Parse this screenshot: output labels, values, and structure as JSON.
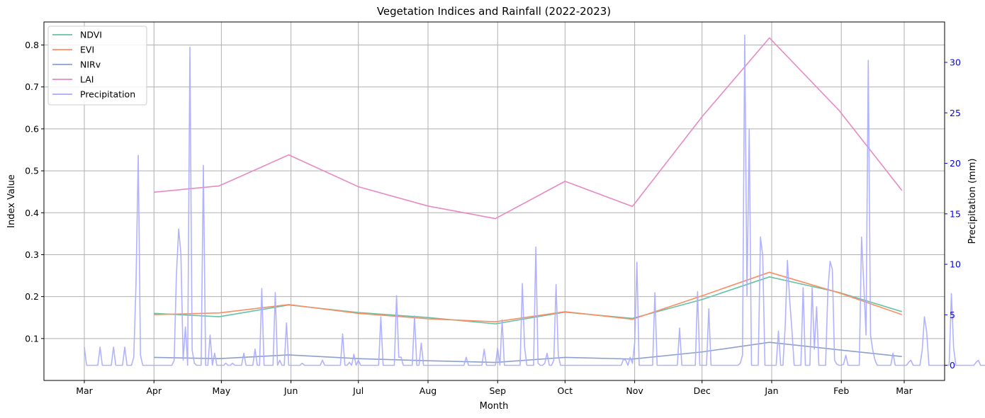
{
  "chart_data": {
    "type": "line",
    "title": "Vegetation Indices and Rainfall (2022-2023)",
    "xlabel": "Month",
    "ylabel": "Index Value",
    "y2label": "Precipitation (mm)",
    "y2_color": "#0000ff",
    "grid": true,
    "legend_position": "top-left",
    "x_ticks": [
      "Mar",
      "Apr",
      "May",
      "Jun",
      "Jul",
      "Aug",
      "Sep",
      "Oct",
      "Nov",
      "Dec",
      "Jan",
      "Feb",
      "Mar"
    ],
    "ylim": [
      0.0,
      0.855
    ],
    "y_ticks": [
      "0.1",
      "0.2",
      "0.3",
      "0.4",
      "0.5",
      "0.6",
      "0.7",
      "0.8"
    ],
    "y2lim": [
      -1.5,
      34
    ],
    "y2_ticks": [
      "0",
      "5",
      "10",
      "15",
      "20",
      "25",
      "30"
    ],
    "x_dates": [
      "2022-04-01",
      "2022-04-30",
      "2022-05-31",
      "2022-07-01",
      "2022-08-01",
      "2022-08-31",
      "2022-10-01",
      "2022-10-31",
      "2022-12-01",
      "2022-12-31",
      "2023-01-31",
      "2023-02-28"
    ],
    "series": [
      {
        "name": "NDVI",
        "color": "#66c2a5",
        "axis": "left",
        "values": [
          0.16,
          0.152,
          0.18,
          0.162,
          0.15,
          0.135,
          0.163,
          0.148,
          0.193,
          0.247,
          0.21,
          0.164
        ]
      },
      {
        "name": "EVI",
        "color": "#fc8d62",
        "axis": "left",
        "values": [
          0.157,
          0.161,
          0.181,
          0.16,
          0.147,
          0.14,
          0.164,
          0.146,
          0.202,
          0.258,
          0.209,
          0.157
        ]
      },
      {
        "name": "NIRv",
        "color": "#8da0cb",
        "axis": "left",
        "values": [
          0.055,
          0.052,
          0.061,
          0.052,
          0.047,
          0.043,
          0.055,
          0.051,
          0.068,
          0.091,
          0.073,
          0.057
        ]
      },
      {
        "name": "LAI",
        "color": "#e78ac3",
        "axis": "left",
        "values": [
          0.449,
          0.464,
          0.538,
          0.462,
          0.416,
          0.386,
          0.475,
          0.415,
          0.629,
          0.817,
          0.644,
          0.453
        ]
      },
      {
        "name": "Precipitation",
        "color": "#aaaaff",
        "axis": "right",
        "x_start": "2022-03-01",
        "values": [
          1.8,
          0,
          0,
          0,
          0,
          0,
          0,
          1.8,
          0,
          0,
          0,
          0,
          0,
          1.8,
          0,
          0,
          0,
          0,
          1.8,
          0,
          0,
          0,
          0.8,
          8,
          20.8,
          1,
          0,
          0,
          0,
          0,
          0,
          0,
          0,
          0,
          0,
          0,
          0,
          0,
          0,
          0,
          0.5,
          9,
          13.5,
          11,
          0.5,
          3.8,
          0,
          31.5,
          1.5,
          0.2,
          0,
          0,
          0,
          19.8,
          0,
          0,
          3,
          0,
          1.2,
          0,
          0,
          0,
          0,
          0.2,
          0,
          0,
          0.2,
          0,
          0,
          0,
          0,
          1.2,
          0,
          0,
          0,
          0,
          1.6,
          0,
          0,
          7.6,
          0,
          0,
          0,
          0,
          0,
          7.2,
          0,
          0.5,
          0,
          0,
          4.2,
          0,
          0,
          0,
          0,
          0,
          0,
          0.2,
          0,
          0,
          0,
          0,
          0,
          0,
          0,
          0,
          0.5,
          0,
          0,
          0,
          0,
          0,
          0,
          0,
          0,
          3.1,
          0,
          0,
          0.3,
          0,
          1.1,
          0,
          0.5,
          0,
          0,
          0,
          0,
          0,
          0,
          0,
          0,
          0,
          4.8,
          0,
          0,
          0,
          0,
          0,
          0,
          6.9,
          0.8,
          0.8,
          0,
          0,
          0,
          0,
          0,
          4.9,
          0,
          0,
          2.2,
          0,
          0,
          0,
          0,
          0,
          0,
          0,
          0,
          0,
          0,
          0,
          0,
          0,
          0,
          0,
          0,
          0,
          0,
          0,
          0.8,
          0,
          0,
          0,
          0,
          0,
          0,
          0,
          1.6,
          0,
          0,
          0,
          0,
          0,
          1.7,
          0,
          4.5,
          0,
          0,
          0,
          0,
          0,
          0,
          0,
          0,
          8.1,
          1.8,
          0,
          0,
          0,
          0,
          11.7,
          0.2,
          0,
          0,
          0.2,
          1.2,
          0,
          0,
          0.5,
          8,
          1,
          0,
          0,
          0,
          0,
          0,
          0,
          0,
          0,
          0,
          0,
          0,
          0,
          0,
          0,
          0,
          0,
          0,
          0,
          0,
          0,
          0,
          0,
          0,
          0,
          0,
          0,
          0,
          0,
          0.6,
          0.5,
          0,
          0.8,
          0.2,
          2.2,
          10.2,
          0,
          0,
          0,
          0,
          0,
          0,
          0,
          7.2,
          0,
          0,
          0,
          0,
          0,
          0,
          0,
          0,
          0,
          0,
          3.7,
          0,
          0,
          0,
          0,
          0,
          0,
          0,
          7.3,
          0,
          0,
          0,
          0,
          5.6,
          0,
          0,
          0,
          0,
          0,
          0,
          0,
          0,
          0,
          0,
          0,
          0,
          0,
          0.2,
          1,
          32.7,
          6.9,
          23.4,
          0,
          0,
          0,
          0,
          12.7,
          10.9,
          0,
          0,
          0,
          0,
          0,
          0,
          3.4,
          0,
          0,
          3.8,
          10.4,
          6.5,
          3.5,
          0,
          0,
          0,
          0,
          7.7,
          0,
          0,
          0,
          7.7,
          1.6,
          5.8,
          0,
          0,
          0,
          0,
          7.3,
          10.3,
          9.5,
          0.5,
          0.1,
          0,
          0,
          0.1,
          1,
          0,
          0,
          0,
          0,
          0,
          0,
          12.7,
          8,
          3,
          30.2,
          3,
          1.5,
          0.5,
          0,
          0,
          0,
          0,
          0,
          0,
          0,
          1.2,
          0,
          0,
          0,
          0,
          0,
          0,
          0.3,
          0.5,
          0,
          0,
          0,
          0,
          1.5,
          4.8,
          3.3,
          0,
          0,
          0,
          0,
          0,
          0,
          0,
          0,
          0,
          0,
          7.1,
          1.7,
          0,
          0,
          0,
          0,
          0,
          0,
          0,
          0,
          0,
          0.3,
          0.5,
          0,
          0,
          0,
          0,
          0,
          2.6,
          0,
          0,
          0,
          0,
          0,
          6.7,
          0,
          0,
          0,
          0,
          0,
          0,
          0,
          0,
          0,
          0,
          0,
          0,
          0.5,
          0,
          0,
          0,
          3.9,
          0,
          0,
          0,
          0,
          0,
          0,
          0,
          0,
          12.2,
          0,
          0,
          0,
          0,
          0,
          0,
          0,
          0,
          0,
          0,
          0,
          0,
          0,
          0,
          0,
          0,
          0,
          0,
          0,
          0,
          0,
          0,
          0,
          0,
          0,
          0,
          0,
          0,
          0,
          3.5,
          0,
          0,
          0,
          0,
          0,
          0,
          0,
          0,
          0,
          0,
          0,
          0,
          0,
          0,
          2.9,
          0,
          0,
          0
        ]
      }
    ]
  }
}
